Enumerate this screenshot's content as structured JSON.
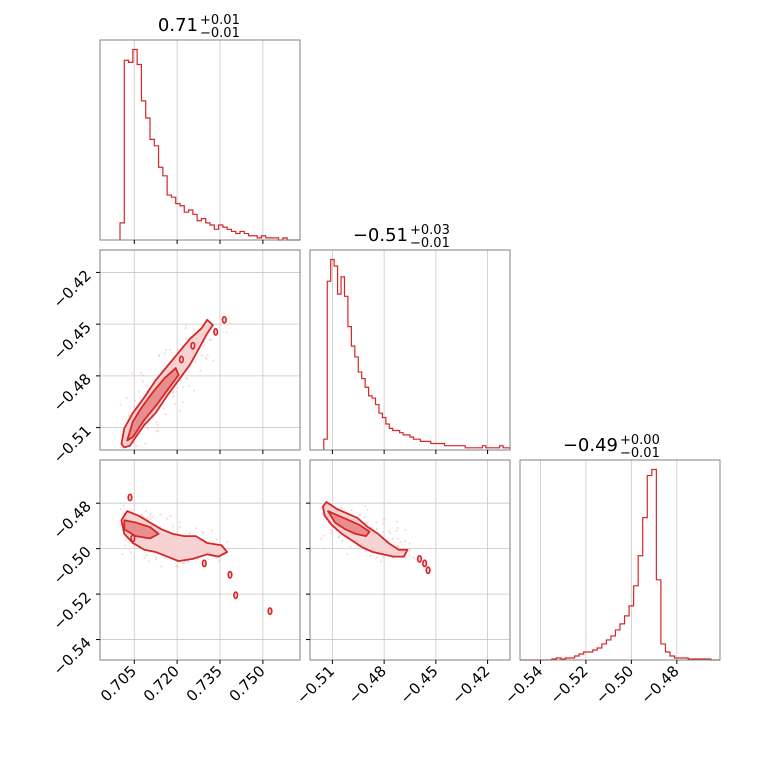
{
  "colors": {
    "line": "#d62728",
    "fill_inner": "#e88e8f",
    "fill_outer": "#f6d2d2",
    "scatter": "#f3b8b9",
    "grid": "#c8c8c8",
    "frame": "#808080"
  },
  "chart_data": {
    "type": "corner",
    "grid": true,
    "parameters": [
      {
        "range": [
          0.693,
          0.763
        ],
        "ticks": [
          0.705,
          0.72,
          0.735,
          0.75
        ],
        "tick_labels": [
          "0.705",
          "0.720",
          "0.735",
          "0.750"
        ]
      },
      {
        "range": [
          -0.523,
          -0.407
        ],
        "ticks": [
          -0.51,
          -0.48,
          -0.45,
          -0.42
        ],
        "tick_labels": [
          "−0.51",
          "−0.48",
          "−0.45",
          "−0.42"
        ]
      },
      {
        "range": [
          -0.549,
          -0.461
        ],
        "ticks": [
          -0.54,
          -0.52,
          -0.5,
          -0.48
        ],
        "tick_labels": [
          "−0.54",
          "−0.52",
          "−0.50",
          "−0.48"
        ]
      }
    ],
    "titles": [
      {
        "median": "0.71",
        "plus": "+0.01",
        "minus": "−0.01"
      },
      {
        "median": "−0.51",
        "plus": "+0.03",
        "minus": "−0.01"
      },
      {
        "median": "−0.49",
        "plus": "+0.00",
        "minus": "−0.01"
      }
    ],
    "histograms": [
      {
        "bin_edges": [
          0.7,
          0.7015,
          0.703,
          0.7045,
          0.706,
          0.7075,
          0.709,
          0.7105,
          0.712,
          0.7135,
          0.715,
          0.7165,
          0.718,
          0.7195,
          0.721,
          0.7225,
          0.724,
          0.7255,
          0.727,
          0.7285,
          0.73,
          0.7315,
          0.733,
          0.7345,
          0.736,
          0.7375,
          0.739,
          0.7405,
          0.742,
          0.7435,
          0.745,
          0.7465,
          0.748,
          0.7495,
          0.751,
          0.7525,
          0.754,
          0.7555,
          0.757,
          0.7585,
          0.76,
          0.763
        ],
        "counts": [
          0.08,
          0.84,
          0.83,
          0.89,
          0.82,
          0.65,
          0.57,
          0.47,
          0.44,
          0.34,
          0.3,
          0.21,
          0.2,
          0.17,
          0.16,
          0.13,
          0.14,
          0.12,
          0.09,
          0.1,
          0.08,
          0.07,
          0.05,
          0.07,
          0.06,
          0.05,
          0.04,
          0.03,
          0.04,
          0.03,
          0.02,
          0.02,
          0.01,
          0.02,
          0.01,
          0.01,
          0.01,
          0.0,
          0.01,
          0.0,
          0.0
        ]
      },
      {
        "bin_edges": [
          -0.515,
          -0.513,
          -0.511,
          -0.509,
          -0.507,
          -0.505,
          -0.503,
          -0.501,
          -0.499,
          -0.497,
          -0.495,
          -0.493,
          -0.491,
          -0.489,
          -0.487,
          -0.485,
          -0.483,
          -0.481,
          -0.479,
          -0.477,
          -0.475,
          -0.473,
          -0.471,
          -0.469,
          -0.467,
          -0.465,
          -0.463,
          -0.461,
          -0.459,
          -0.457,
          -0.455,
          -0.453,
          -0.451,
          -0.449,
          -0.447,
          -0.445,
          -0.443,
          -0.441,
          -0.439,
          -0.437,
          -0.435,
          -0.433,
          -0.431,
          -0.429,
          -0.427,
          -0.425,
          -0.423,
          -0.421,
          -0.419,
          -0.417,
          -0.415,
          -0.413,
          -0.411,
          -0.409,
          -0.407
        ],
        "counts": [
          0.05,
          0.78,
          0.88,
          0.85,
          0.72,
          0.8,
          0.71,
          0.57,
          0.48,
          0.43,
          0.36,
          0.33,
          0.29,
          0.25,
          0.24,
          0.21,
          0.17,
          0.15,
          0.12,
          0.1,
          0.09,
          0.09,
          0.08,
          0.07,
          0.07,
          0.06,
          0.05,
          0.05,
          0.04,
          0.04,
          0.04,
          0.03,
          0.03,
          0.03,
          0.03,
          0.02,
          0.02,
          0.02,
          0.02,
          0.02,
          0.02,
          0.01,
          0.01,
          0.01,
          0.01,
          0.01,
          0.02,
          0.01,
          0.01,
          0.01,
          0.01,
          0.02,
          0.01,
          0.01
        ]
      },
      {
        "bin_edges": [
          -0.549,
          -0.547,
          -0.545,
          -0.543,
          -0.541,
          -0.539,
          -0.537,
          -0.535,
          -0.533,
          -0.531,
          -0.529,
          -0.527,
          -0.525,
          -0.523,
          -0.521,
          -0.519,
          -0.517,
          -0.515,
          -0.513,
          -0.511,
          -0.509,
          -0.507,
          -0.505,
          -0.503,
          -0.501,
          -0.499,
          -0.497,
          -0.495,
          -0.493,
          -0.491,
          -0.489,
          -0.487,
          -0.485,
          -0.483,
          -0.481,
          -0.479,
          -0.477,
          -0.475,
          -0.473,
          -0.471,
          -0.469,
          -0.467,
          -0.465,
          -0.463,
          -0.461
        ],
        "counts": [
          0,
          0,
          0,
          0,
          0,
          0,
          0,
          0.005,
          0.01,
          0.005,
          0.01,
          0.01,
          0.02,
          0.03,
          0.04,
          0.04,
          0.05,
          0.06,
          0.08,
          0.1,
          0.12,
          0.15,
          0.18,
          0.22,
          0.27,
          0.37,
          0.52,
          0.71,
          0.92,
          0.95,
          0.4,
          0.08,
          0.04,
          0.02,
          0.01,
          0.01,
          0.01,
          0.005,
          0.005,
          0.005,
          0.005,
          0.005,
          0,
          0
        ]
      }
    ],
    "joint": [
      {
        "x_param": 0,
        "y_param": 1,
        "outer_contour": [
          [
            0.7005,
            -0.5195
          ],
          [
            0.7015,
            -0.5215
          ],
          [
            0.7035,
            -0.5205
          ],
          [
            0.7055,
            -0.5155
          ],
          [
            0.7085,
            -0.5085
          ],
          [
            0.7125,
            -0.5015
          ],
          [
            0.7165,
            -0.4915
          ],
          [
            0.7205,
            -0.4825
          ],
          [
            0.7245,
            -0.4735
          ],
          [
            0.7275,
            -0.4645
          ],
          [
            0.7305,
            -0.4555
          ],
          [
            0.7325,
            -0.4505
          ],
          [
            0.7305,
            -0.4475
          ],
          [
            0.7285,
            -0.4525
          ],
          [
            0.7245,
            -0.4585
          ],
          [
            0.7205,
            -0.4665
          ],
          [
            0.7165,
            -0.4745
          ],
          [
            0.7125,
            -0.4825
          ],
          [
            0.7085,
            -0.4925
          ],
          [
            0.7045,
            -0.5015
          ],
          [
            0.7015,
            -0.5105
          ],
          [
            0.7005,
            -0.5195
          ]
        ],
        "inner_contour": [
          [
            0.7025,
            -0.5175
          ],
          [
            0.7045,
            -0.5155
          ],
          [
            0.7085,
            -0.5055
          ],
          [
            0.7125,
            -0.4975
          ],
          [
            0.7165,
            -0.4885
          ],
          [
            0.7205,
            -0.4795
          ],
          [
            0.7195,
            -0.4755
          ],
          [
            0.7155,
            -0.4815
          ],
          [
            0.7115,
            -0.4895
          ],
          [
            0.7075,
            -0.4985
          ],
          [
            0.7045,
            -0.5065
          ],
          [
            0.7025,
            -0.5175
          ]
        ],
        "islands": [
          [
            0.7215,
            -0.4705
          ],
          [
            0.7255,
            -0.4625
          ],
          [
            0.7365,
            -0.4475
          ],
          [
            0.7335,
            -0.4545
          ]
        ],
        "scatter_region": {
          "x": [
            0.7,
            0.758
          ],
          "y": [
            -0.522,
            -0.408
          ]
        }
      },
      {
        "x_param": 0,
        "y_param": 2,
        "outer_contour": [
          [
            0.7005,
            -0.4875
          ],
          [
            0.7025,
            -0.4835
          ],
          [
            0.7065,
            -0.4855
          ],
          [
            0.7105,
            -0.4885
          ],
          [
            0.7145,
            -0.4915
          ],
          [
            0.7185,
            -0.4935
          ],
          [
            0.7225,
            -0.4945
          ],
          [
            0.7265,
            -0.4945
          ],
          [
            0.7305,
            -0.4975
          ],
          [
            0.7355,
            -0.4985
          ],
          [
            0.7375,
            -0.5015
          ],
          [
            0.7345,
            -0.5035
          ],
          [
            0.7305,
            -0.5025
          ],
          [
            0.7255,
            -0.5045
          ],
          [
            0.7205,
            -0.5055
          ],
          [
            0.7165,
            -0.5035
          ],
          [
            0.7125,
            -0.5015
          ],
          [
            0.7085,
            -0.5005
          ],
          [
            0.7045,
            -0.4975
          ],
          [
            0.7015,
            -0.4935
          ],
          [
            0.7005,
            -0.4875
          ]
        ],
        "inner_contour": [
          [
            0.7015,
            -0.4875
          ],
          [
            0.7055,
            -0.4885
          ],
          [
            0.7105,
            -0.4905
          ],
          [
            0.7135,
            -0.4935
          ],
          [
            0.7105,
            -0.4955
          ],
          [
            0.7055,
            -0.4945
          ],
          [
            0.7015,
            -0.4915
          ],
          [
            0.7015,
            -0.4875
          ]
        ],
        "islands": [
          [
            0.7035,
            -0.4775
          ],
          [
            0.7045,
            -0.4955
          ],
          [
            0.7295,
            -0.5065
          ],
          [
            0.7385,
            -0.5115
          ],
          [
            0.7405,
            -0.5205
          ],
          [
            0.7525,
            -0.5275
          ]
        ],
        "scatter_region": {
          "x": [
            0.7,
            0.76
          ],
          "y": [
            -0.52,
            -0.478
          ]
        }
      },
      {
        "x_param": 1,
        "y_param": 2,
        "outer_contour": [
          [
            -0.5155,
            -0.4815
          ],
          [
            -0.5135,
            -0.4795
          ],
          [
            -0.5075,
            -0.4825
          ],
          [
            -0.5015,
            -0.4845
          ],
          [
            -0.4955,
            -0.4865
          ],
          [
            -0.4895,
            -0.4905
          ],
          [
            -0.4835,
            -0.4935
          ],
          [
            -0.4775,
            -0.4975
          ],
          [
            -0.4715,
            -0.5005
          ],
          [
            -0.4665,
            -0.5005
          ],
          [
            -0.4685,
            -0.5035
          ],
          [
            -0.4745,
            -0.5035
          ],
          [
            -0.4805,
            -0.5025
          ],
          [
            -0.4865,
            -0.5015
          ],
          [
            -0.4925,
            -0.4995
          ],
          [
            -0.4985,
            -0.4965
          ],
          [
            -0.5045,
            -0.4935
          ],
          [
            -0.5105,
            -0.4895
          ],
          [
            -0.5145,
            -0.4855
          ],
          [
            -0.5155,
            -0.4815
          ]
        ],
        "inner_contour": [
          [
            -0.5125,
            -0.4835
          ],
          [
            -0.5065,
            -0.4855
          ],
          [
            -0.5005,
            -0.4875
          ],
          [
            -0.4945,
            -0.4895
          ],
          [
            -0.4885,
            -0.4925
          ],
          [
            -0.4905,
            -0.4945
          ],
          [
            -0.4965,
            -0.4935
          ],
          [
            -0.5025,
            -0.4915
          ],
          [
            -0.5085,
            -0.4885
          ],
          [
            -0.5125,
            -0.4835
          ]
        ],
        "islands": [
          [
            -0.4565,
            -0.5065
          ],
          [
            -0.4545,
            -0.5095
          ],
          [
            -0.4595,
            -0.5045
          ]
        ],
        "scatter_region": {
          "x": [
            -0.518,
            -0.408
          ],
          "y": [
            -0.525,
            -0.48
          ]
        }
      }
    ]
  }
}
